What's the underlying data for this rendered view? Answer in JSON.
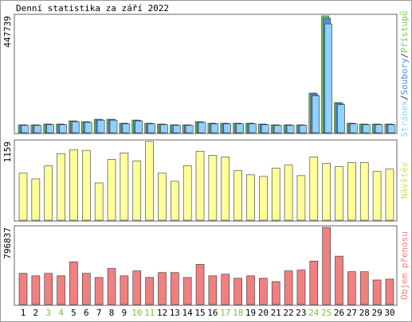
{
  "chart_data": [
    {
      "type": "bar",
      "title": "Denní statistika za září 2022",
      "legend_separator": "/",
      "ylim": [
        0,
        447739
      ],
      "yticks": [
        447739
      ],
      "series": [
        {
          "name": "Stránek",
          "color": "#8fd1ff",
          "values": [
            28400,
            28400,
            31100,
            31100,
            42500,
            39600,
            48200,
            48200,
            34100,
            45300,
            34100,
            31100,
            28400,
            28400,
            39600,
            34100,
            34100,
            34100,
            34100,
            31100,
            28400,
            28400,
            28400,
            141700,
            416900,
            107700,
            34100,
            31100,
            31100,
            31100
          ]
        },
        {
          "name": "Soubory",
          "color": "#4a8fe0",
          "values": [
            29900,
            29900,
            32800,
            32800,
            44800,
            41700,
            50800,
            50800,
            35900,
            47700,
            35900,
            32800,
            29900,
            29900,
            41700,
            35900,
            35900,
            35900,
            35900,
            32800,
            29900,
            29900,
            29900,
            149200,
            438800,
            113400,
            35900,
            32800,
            32800,
            32800
          ]
        },
        {
          "name": "Přístupů",
          "color": "#77cc55",
          "values": [
            30500,
            30500,
            33500,
            33500,
            45700,
            42600,
            51800,
            51800,
            36600,
            48700,
            36600,
            33500,
            30500,
            30500,
            42600,
            36600,
            36600,
            36600,
            36600,
            33500,
            30500,
            30500,
            30500,
            152300,
            447739,
            115700,
            36600,
            33500,
            33500,
            33500
          ]
        }
      ]
    },
    {
      "type": "bar",
      "ylim": [
        0,
        1159
      ],
      "yticks": [
        1159
      ],
      "series": [
        {
          "name": "Návštěv",
          "color": "#ffff99",
          "values": [
            693,
            609,
            801,
            980,
            1040,
            1028,
            550,
            896,
            992,
            872,
            1159,
            693,
            574,
            801,
            1016,
            956,
            932,
            729,
            669,
            645,
            765,
            813,
            657,
            932,
            836,
            789,
            848,
            848,
            717,
            753
          ]
        }
      ]
    },
    {
      "type": "bar",
      "ylim": [
        0,
        796837
      ],
      "yticks": [
        796837
      ],
      "categories": [
        "1",
        "2",
        "3",
        "4",
        "5",
        "6",
        "7",
        "8",
        "9",
        "10",
        "11",
        "12",
        "13",
        "14",
        "15",
        "16",
        "17",
        "18",
        "19",
        "20",
        "21",
        "22",
        "23",
        "24",
        "25",
        "26",
        "27",
        "28",
        "29",
        "30"
      ],
      "highlight": [
        2,
        3,
        9,
        10,
        16,
        17,
        23,
        24
      ],
      "highlight_color": "#8bbd3c",
      "series": [
        {
          "name": "Objem přenosu",
          "color": "#f08080",
          "values": [
            322100,
            296700,
            322100,
            296700,
            440800,
            322100,
            279700,
            373000,
            296700,
            347600,
            279700,
            330600,
            330600,
            279700,
            415400,
            296700,
            313600,
            271300,
            296700,
            271300,
            237400,
            347600,
            356000,
            449300,
            796837,
            500100,
            339100,
            339100,
            254300,
            262800
          ]
        }
      ]
    }
  ]
}
